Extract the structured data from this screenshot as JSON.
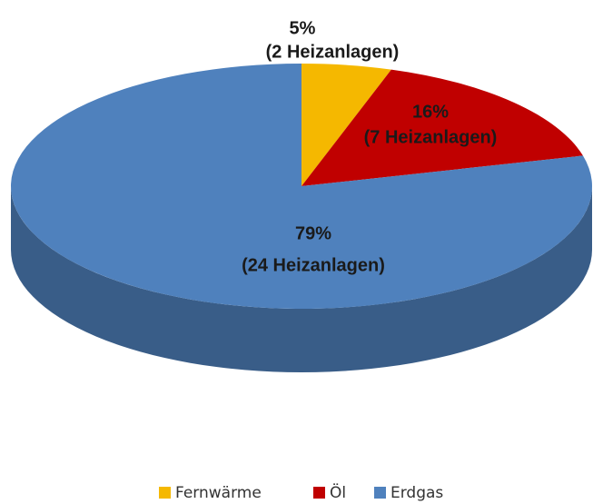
{
  "chart_data": {
    "type": "pie",
    "categories": [
      "Fernwärme",
      "Öl",
      "Erdgas"
    ],
    "values": [
      5,
      16,
      79
    ],
    "value_labels": [
      "5%",
      "16%",
      "79%"
    ],
    "count_labels": [
      "(2 Heizanlagen)",
      "(7 Heizanlagen)",
      "(24 Heizanlagen)"
    ],
    "colors": [
      "#f5b800",
      "#c00000",
      "#4f81bd"
    ],
    "legend": "bottom"
  }
}
